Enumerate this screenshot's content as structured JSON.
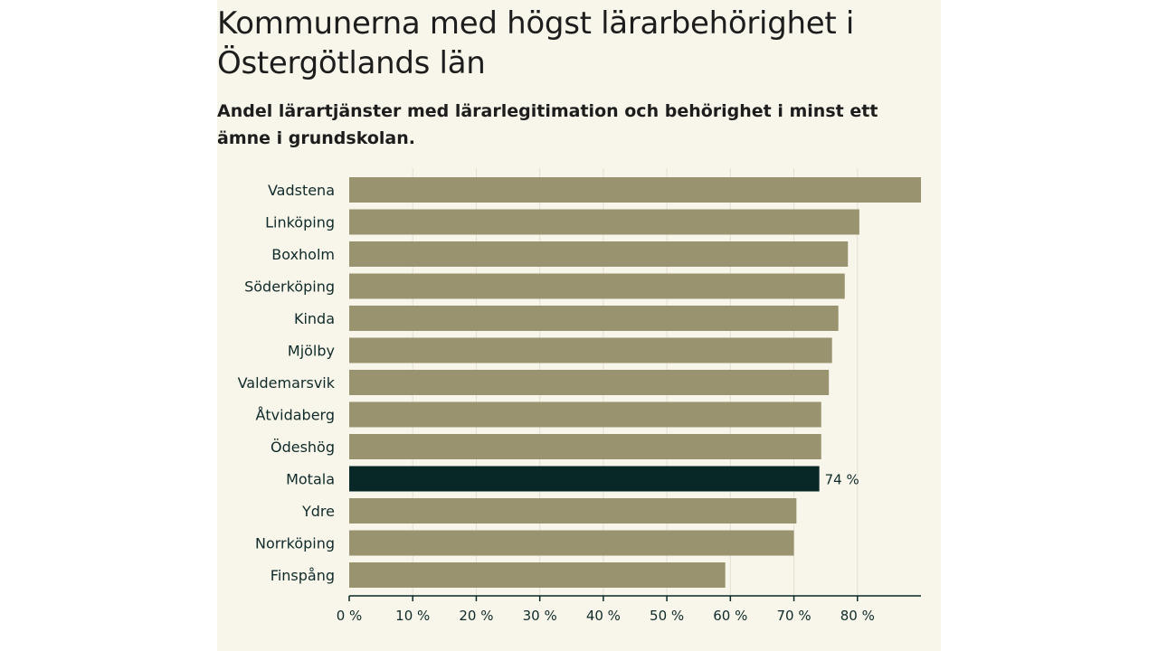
{
  "colors": {
    "background": "#f8f6ea",
    "bar": "#99946f",
    "highlight_bar": "#082827",
    "grid": "#e3e0d2",
    "axis": "#082827",
    "label_text": "#0f2a2a"
  },
  "chart_data": {
    "type": "bar",
    "orientation": "horizontal",
    "title": "Kommunerna med högst lärarbehörighet i Östergötlands län",
    "subtitle": "Andel lärartjänster med lärarlegitimation och behörighet i minst ett ämne i grundskolan.",
    "categories": [
      "Vadstena",
      "Linköping",
      "Boxholm",
      "Söderköping",
      "Kinda",
      "Mjölby",
      "Valdemarsvik",
      "Åtvidaberg",
      "Ödeshög",
      "Motala",
      "Ydre",
      "Norrköping",
      "Finspång"
    ],
    "values": [
      90,
      80.3,
      78.5,
      78,
      77,
      76,
      75.5,
      74.3,
      74.3,
      74,
      70.4,
      70,
      59.2
    ],
    "highlight": "Motala",
    "highlight_label": "74 %",
    "xlim": [
      0,
      90
    ],
    "xticks": [
      0,
      10,
      20,
      30,
      40,
      50,
      60,
      70,
      80
    ],
    "xtick_labels": [
      "0 %",
      "10 %",
      "20 %",
      "30 %",
      "40 %",
      "50 %",
      "60 %",
      "70 %",
      "80 %"
    ],
    "xlabel": "",
    "ylabel": "",
    "grid": true
  }
}
